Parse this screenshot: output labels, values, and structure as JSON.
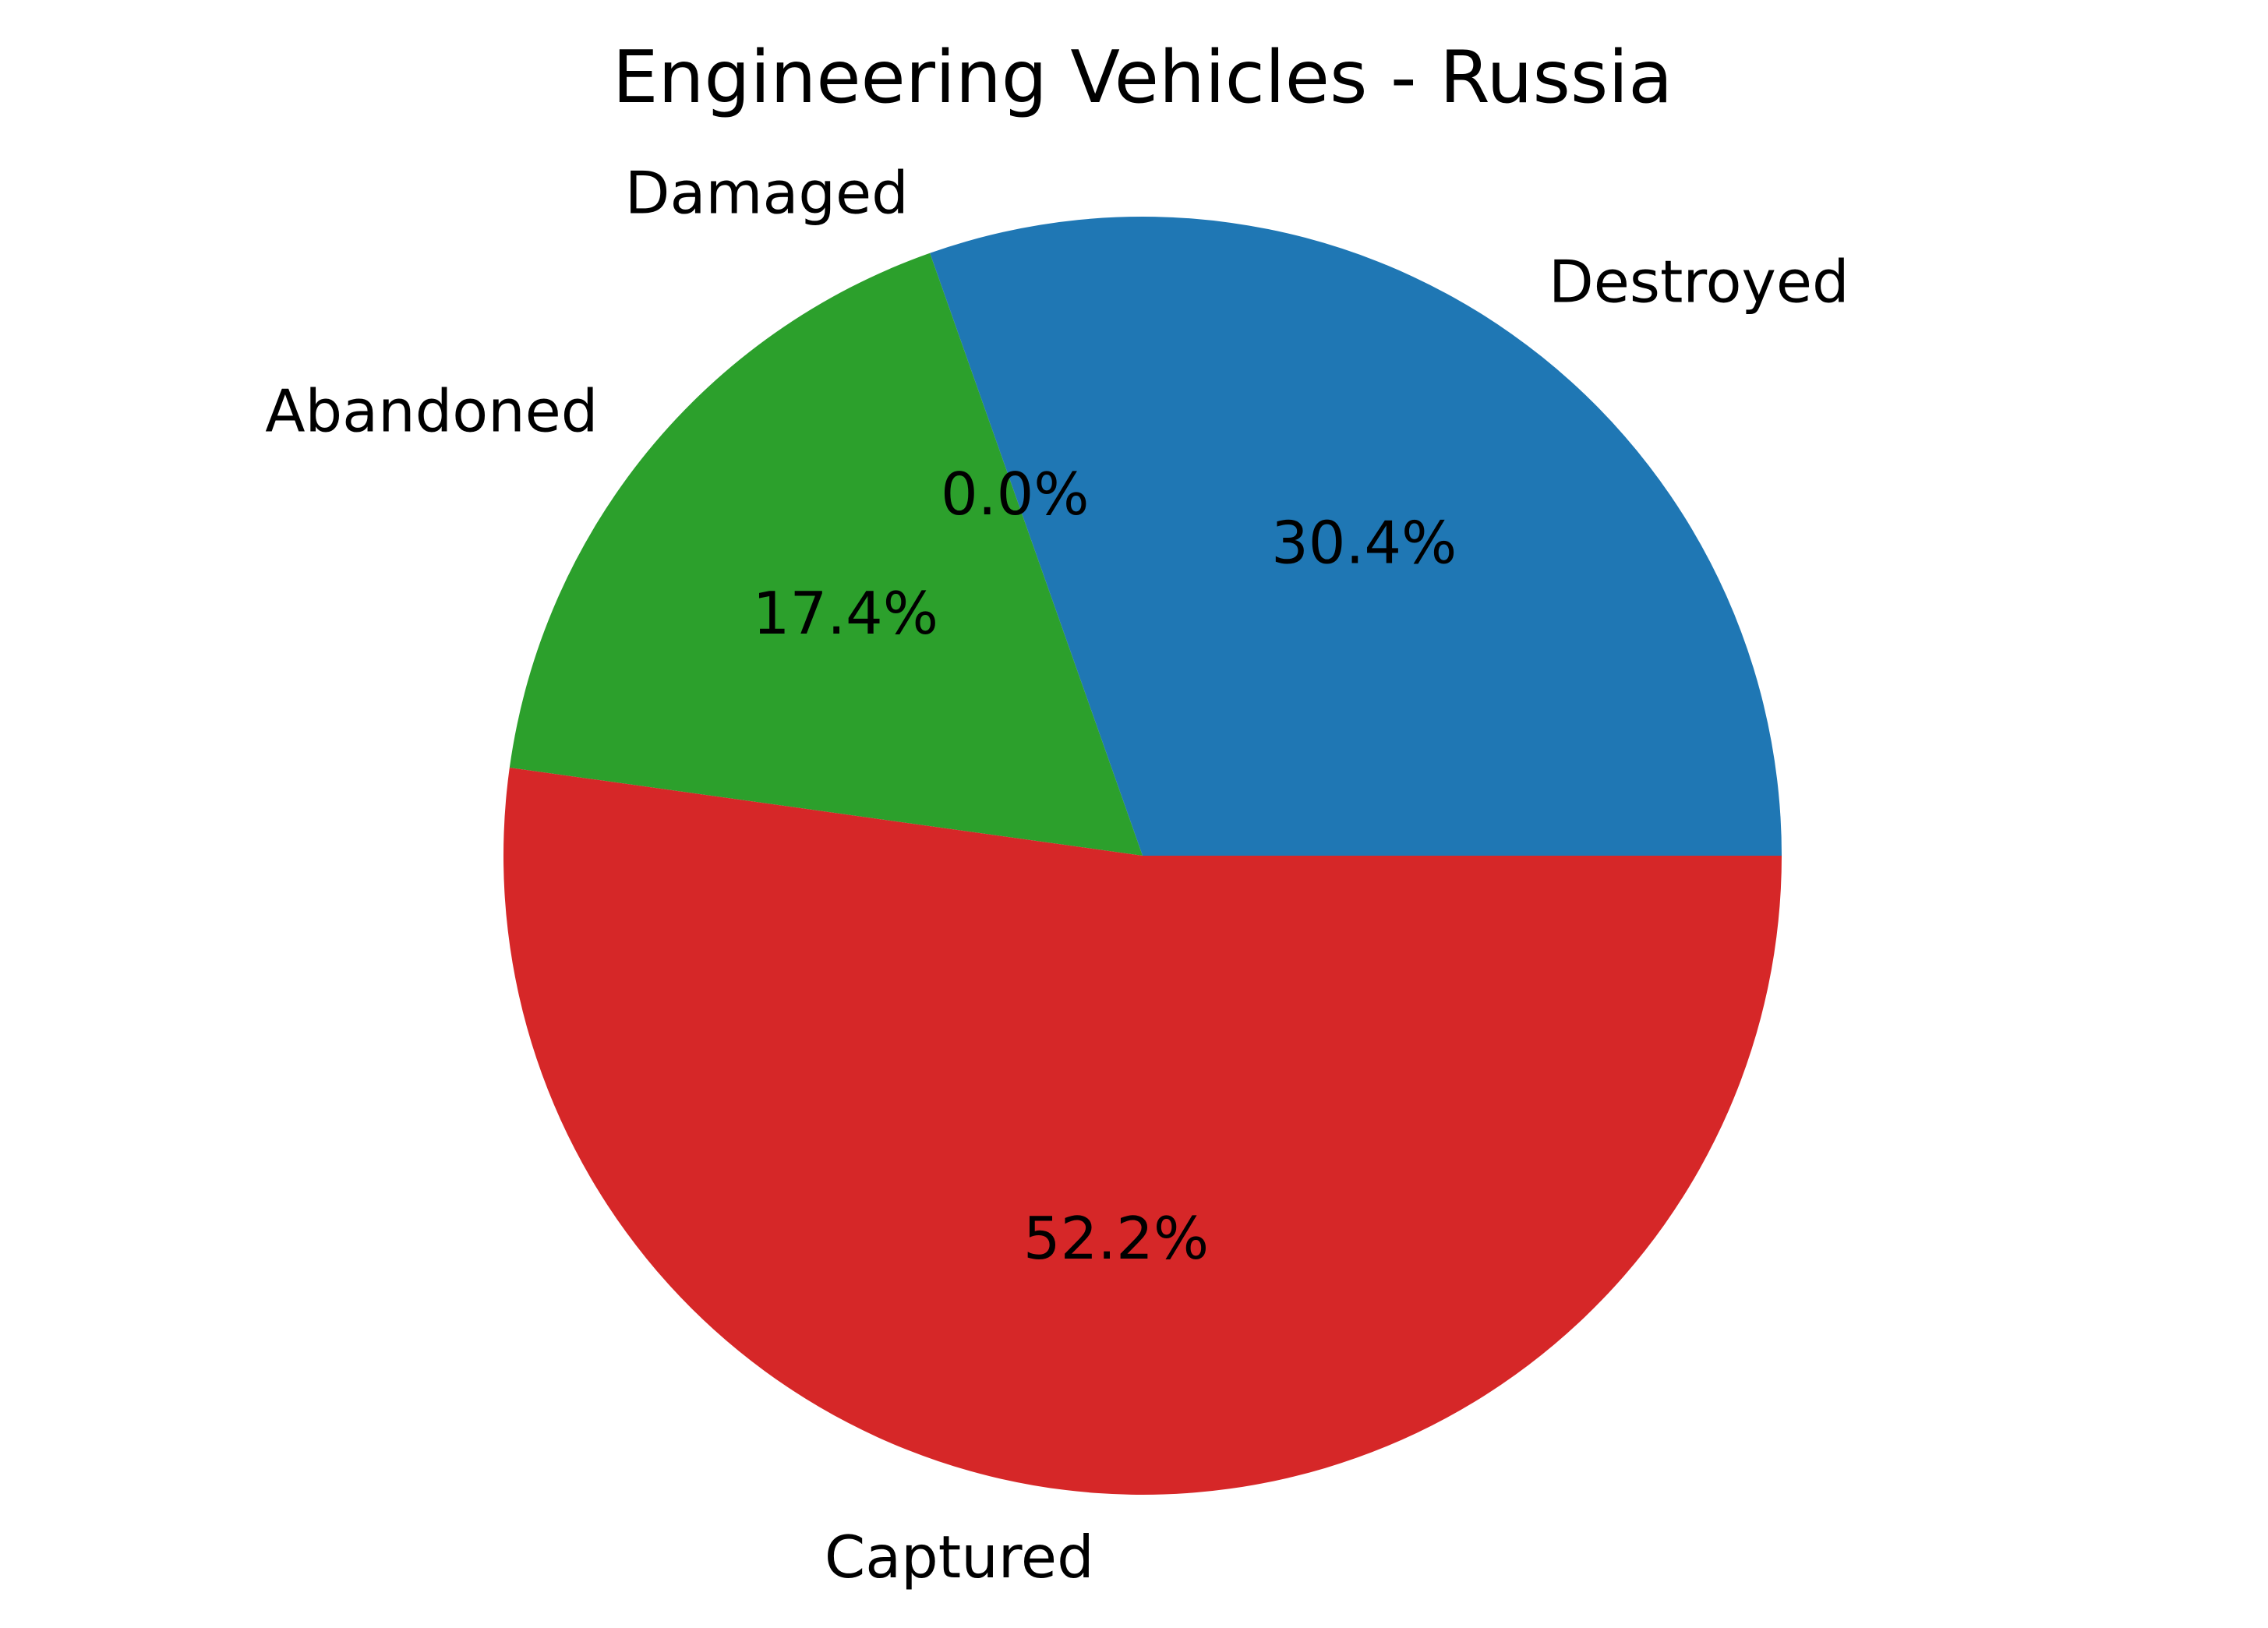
{
  "chart_data": {
    "type": "pie",
    "title": "Engineering Vehicles - Russia",
    "categories": [
      "Destroyed",
      "Damaged",
      "Abandoned",
      "Captured"
    ],
    "values": [
      30.4,
      0.0,
      17.4,
      52.2
    ],
    "percent_labels": [
      "30.4%",
      "0.0%",
      "17.4%",
      "52.2%"
    ],
    "colors": [
      "#1f77b4",
      "#ff7f0e",
      "#2ca02c",
      "#d62728"
    ],
    "start_angle": 0,
    "direction": "counterclockwise",
    "legend": false
  }
}
